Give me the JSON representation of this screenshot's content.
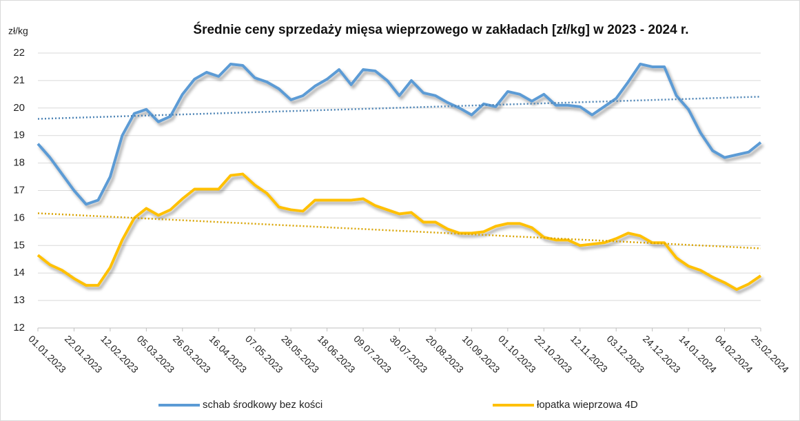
{
  "chart_data": {
    "type": "line",
    "title": "Średnie ceny sprzedaży mięsa wieprzowego w zakładach [zł/kg] w 2023 - 2024 r.",
    "y_label": "zł/kg",
    "categories": [
      "01.01.2023",
      null,
      null,
      "22.01.2023",
      null,
      null,
      "12.02.2023",
      null,
      null,
      "05.03.2023",
      null,
      null,
      "26.03.2023",
      null,
      null,
      "16.04.2023",
      null,
      null,
      "07.05.2023",
      null,
      null,
      "28.05.2023",
      null,
      null,
      "18.06.2023",
      null,
      null,
      "09.07.2023",
      null,
      null,
      "30.07.2023",
      null,
      null,
      "20.08.2023",
      null,
      null,
      "10.09.2023",
      null,
      null,
      "01.10.2023",
      null,
      null,
      "22.10.2023",
      null,
      null,
      "12.11.2023",
      null,
      null,
      "03.12.2023",
      null,
      null,
      "24.12.2023",
      null,
      null,
      "14.01.2024",
      null,
      null,
      "04.02.2024",
      null,
      null,
      "25.02.2024"
    ],
    "series": [
      {
        "name": "schab środkowy bez kości",
        "color": "#5b9bd5",
        "trendline": true,
        "values": [
          18.7,
          18.2,
          17.6,
          17.0,
          16.5,
          16.65,
          17.5,
          19.0,
          19.8,
          19.95,
          19.5,
          19.7,
          20.5,
          21.05,
          21.3,
          21.15,
          21.6,
          21.55,
          21.1,
          20.95,
          20.7,
          20.3,
          20.45,
          20.8,
          21.05,
          21.4,
          20.85,
          21.4,
          21.35,
          21.0,
          20.45,
          21.0,
          20.55,
          20.45,
          20.2,
          20.0,
          19.75,
          20.15,
          20.05,
          20.6,
          20.5,
          20.25,
          20.5,
          20.1,
          20.1,
          20.05,
          19.75,
          20.05,
          20.35,
          20.95,
          21.6,
          21.5,
          21.5,
          20.45,
          19.95,
          19.1,
          18.45,
          18.2,
          18.3,
          18.4,
          18.75
        ]
      },
      {
        "name": "łopatka wieprzowa 4D",
        "color": "#ffc000",
        "trendline": true,
        "values": [
          14.65,
          14.3,
          14.1,
          13.8,
          13.55,
          13.55,
          14.2,
          15.2,
          16.0,
          16.35,
          16.1,
          16.3,
          16.7,
          17.05,
          17.05,
          17.05,
          17.55,
          17.6,
          17.2,
          16.9,
          16.4,
          16.3,
          16.25,
          16.65,
          16.65,
          16.65,
          16.65,
          16.7,
          16.45,
          16.3,
          16.15,
          16.2,
          15.85,
          15.85,
          15.6,
          15.45,
          15.45,
          15.5,
          15.7,
          15.8,
          15.8,
          15.65,
          15.3,
          15.2,
          15.2,
          15.0,
          15.05,
          15.1,
          15.25,
          15.45,
          15.35,
          15.1,
          15.1,
          14.55,
          14.25,
          14.1,
          13.85,
          13.65,
          13.4,
          13.6,
          13.9
        ]
      }
    ],
    "ylim": [
      12,
      22
    ],
    "yticks": [
      12,
      13,
      14,
      15,
      16,
      17,
      18,
      19,
      20,
      21,
      22
    ],
    "grid": true,
    "legend": "bottom"
  }
}
